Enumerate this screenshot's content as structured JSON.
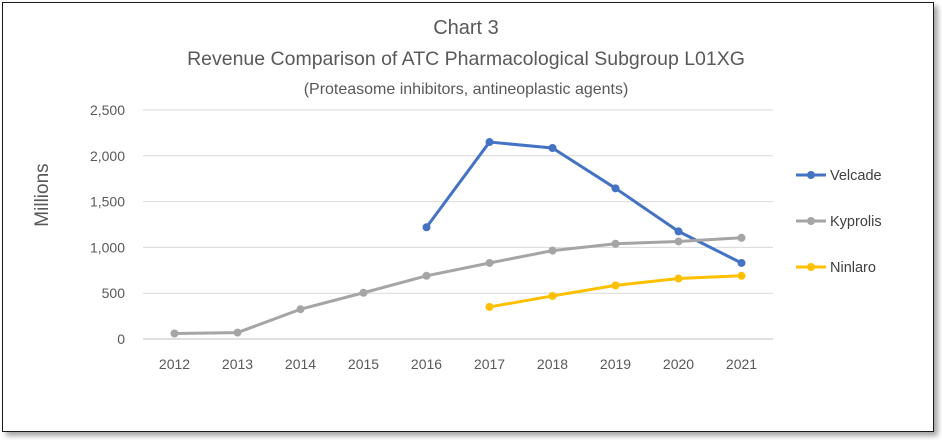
{
  "chart_data": {
    "type": "line",
    "title": "Chart 3",
    "subtitle": "Revenue Comparison of ATC Pharmacological Subgroup L01XG",
    "subtitle2": "(Proteasome inhibitors, antineoplastic agents)",
    "ylabel": "Millions",
    "xlabel": "",
    "ylim": [
      0,
      2500
    ],
    "y_ticks": [
      0,
      500,
      1000,
      1500,
      2000,
      2500
    ],
    "y_tick_labels": [
      "0",
      "500",
      "1,000",
      "1,500",
      "2,000",
      "2,500"
    ],
    "categories": [
      "2012",
      "2013",
      "2014",
      "2015",
      "2016",
      "2017",
      "2018",
      "2019",
      "2020",
      "2021"
    ],
    "grid": "horizontal",
    "legend_position": "right",
    "series": [
      {
        "name": "Velcade",
        "color": "#4472C4",
        "values": [
          null,
          null,
          null,
          null,
          1220,
          2150,
          2085,
          1645,
          1175,
          830
        ]
      },
      {
        "name": "Kyprolis",
        "color": "#A5A5A5",
        "values": [
          60,
          70,
          325,
          505,
          690,
          830,
          965,
          1040,
          1065,
          1105
        ]
      },
      {
        "name": "Ninlaro",
        "color": "#FFC000",
        "values": [
          null,
          null,
          null,
          null,
          null,
          350,
          470,
          585,
          660,
          690
        ]
      }
    ]
  }
}
